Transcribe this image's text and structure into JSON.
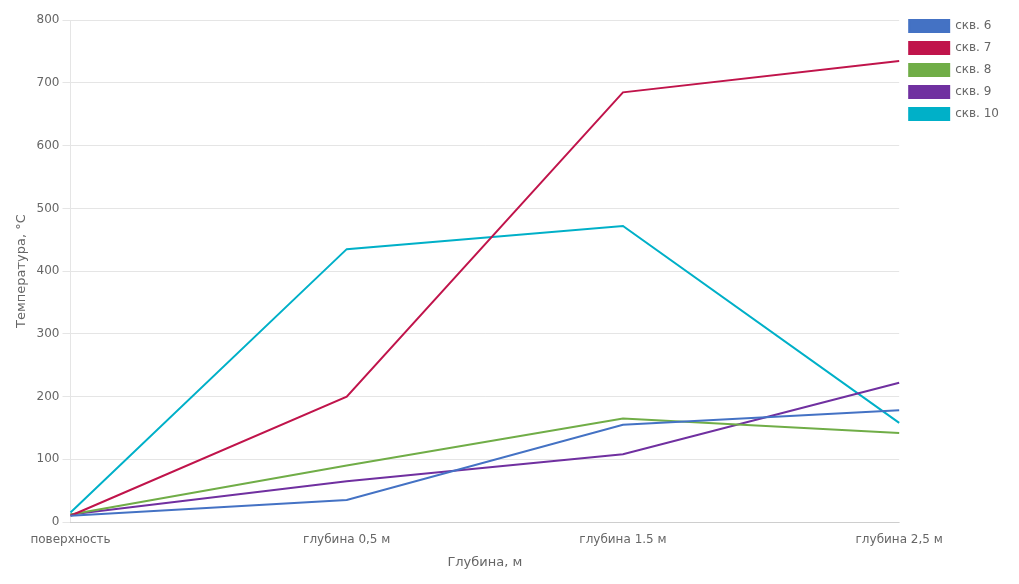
{
  "chart_data": {
    "type": "line",
    "categories": [
      "поверхность",
      "глубина 0,5 м",
      "глубина 1.5 м",
      "глубина 2,5 м"
    ],
    "xlabel": "Глубина, м",
    "ylabel": "Температура, °C",
    "series": [
      {
        "name": "скв. 6",
        "color": "#4472C4",
        "values": [
          10,
          35,
          155,
          178
        ]
      },
      {
        "name": "скв. 7",
        "color": "#C0144B",
        "values": [
          10,
          200,
          685,
          735
        ]
      },
      {
        "name": "скв. 8",
        "color": "#70AD47",
        "values": [
          12,
          90,
          165,
          142
        ]
      },
      {
        "name": "скв. 9",
        "color": "#7030A0",
        "values": [
          12,
          65,
          108,
          222
        ]
      },
      {
        "name": "скв. 10",
        "color": "#00B0C8",
        "values": [
          15,
          435,
          472,
          158
        ]
      }
    ],
    "ylim": [
      0,
      800
    ],
    "yticks": [
      0,
      100,
      200,
      300,
      400,
      500,
      600,
      700,
      800
    ],
    "grid": "y",
    "legend": "right"
  }
}
